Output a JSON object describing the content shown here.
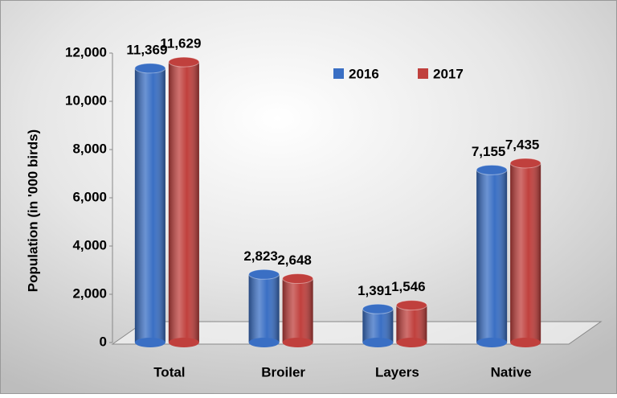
{
  "chart_data": {
    "type": "bar",
    "y_label": "Population  (in '000 birds)",
    "categories": [
      "Total",
      "Broiler",
      "Layers",
      "Native"
    ],
    "series": [
      {
        "name": "2016",
        "color": "#3a6fc4",
        "values": [
          11369,
          2823,
          1391,
          7155
        ],
        "value_labels": [
          "11,369",
          "2,823",
          "1,391",
          "7,155"
        ]
      },
      {
        "name": "2017",
        "color": "#c0403d",
        "values": [
          11629,
          2648,
          1546,
          7435
        ],
        "value_labels": [
          "11,629",
          "2,648",
          "1,546",
          "7,435"
        ]
      }
    ],
    "ylim": [
      0,
      12000
    ],
    "yticks": [
      0,
      {
        "value": 2000,
        "label": "2,000"
      },
      {
        "value": 4000,
        "label": "4,000"
      },
      {
        "value": 6000,
        "label": "6,000"
      },
      {
        "value": 8000,
        "label": "8,000"
      },
      {
        "value": 10000,
        "label": "10,000"
      },
      {
        "value": 12000,
        "label": "12,000"
      }
    ],
    "legend": "top-right"
  }
}
